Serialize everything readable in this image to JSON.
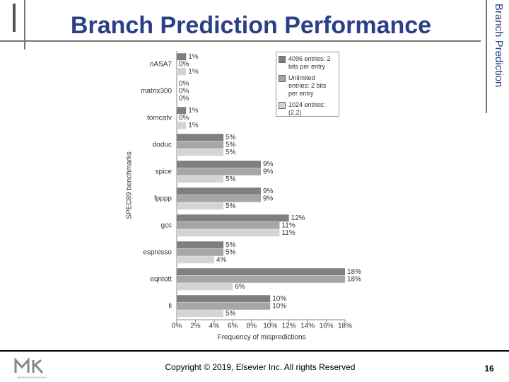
{
  "slide": {
    "title": "Branch Prediction Performance",
    "side_title": "Branch Prediction",
    "copyright": "Copyright © 2019, Elsevier Inc. All rights Reserved",
    "page_number": "16",
    "logo_caption": "MORGAN KAUFMANN"
  },
  "chart_data": {
    "type": "hbar",
    "x_label": "Frequency of mispredictions",
    "y_label": "SPEC89 benchmarks",
    "categories": [
      "nASA7",
      "matrix300",
      "tomcatv",
      "doduc",
      "spice",
      "fpppp",
      "gcc",
      "espresso",
      "eqntott",
      "li"
    ],
    "series": [
      {
        "name": "4096 entries: 2 bits per entry",
        "color": "#7f7f7f",
        "values": [
          1,
          0,
          1,
          5,
          9,
          9,
          12,
          5,
          18,
          10
        ],
        "value_labels": [
          "1%",
          "0%",
          "1%",
          "5%",
          "9%",
          "9%",
          "12%",
          "5%",
          "18%",
          "10%"
        ]
      },
      {
        "name": "Unlimited entries: 2 bits per entry",
        "color": "#a6a6a6",
        "values": [
          0,
          0,
          0,
          5,
          9,
          9,
          11,
          5,
          18,
          10
        ],
        "value_labels": [
          "0%",
          "0%",
          "0%",
          "5%",
          "9%",
          "9%",
          "11%",
          "5%",
          "18%",
          "10%"
        ]
      },
      {
        "name": "1024 entries: (2,2)",
        "color": "#d4d4d4",
        "values": [
          1,
          0,
          1,
          5,
          5,
          5,
          11,
          4,
          6,
          5
        ],
        "value_labels": [
          "1%",
          "0%",
          "1%",
          "5%",
          "5%",
          "5%",
          "11%",
          "4%",
          "6%",
          "5%"
        ]
      }
    ],
    "xlim": [
      0,
      18
    ],
    "xticks": [
      {
        "value": 0,
        "label": "0%"
      },
      {
        "value": 2,
        "label": "2%"
      },
      {
        "value": 4,
        "label": "4%"
      },
      {
        "value": 6,
        "label": "6%"
      },
      {
        "value": 8,
        "label": "8%"
      },
      {
        "value": 10,
        "label": "10%"
      },
      {
        "value": 12,
        "label": "12%"
      },
      {
        "value": 14,
        "label": "14%"
      },
      {
        "value": 16,
        "label": "16%"
      },
      {
        "value": 18,
        "label": "18%"
      }
    ],
    "legend": "top-right"
  }
}
